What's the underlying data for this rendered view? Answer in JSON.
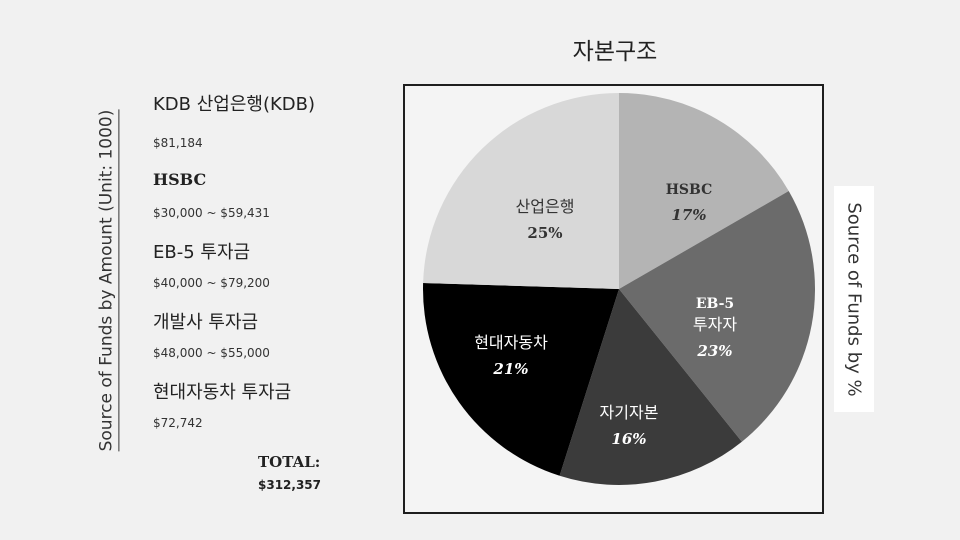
{
  "chart_title": "자본구조",
  "left_axis_title": "Source of Funds by Amount (Unit: 1000)",
  "right_axis_title": "Source of Funds by %",
  "sources": [
    {
      "name": "KDB 산업은행(KDB)",
      "amount": "$81,184",
      "serif": false
    },
    {
      "name": "HSBC",
      "amount": "$30,000 ~ $59,431",
      "serif": true
    },
    {
      "name": "EB-5 투자금",
      "amount": "$40,000 ~ $79,200",
      "serif": false
    },
    {
      "name": "개발사 투자금",
      "amount": "$48,000 ~ $55,000",
      "serif": false
    },
    {
      "name": "현대자동차 투자금",
      "amount": "$72,742",
      "serif": false
    }
  ],
  "total": {
    "label": "TOTAL:",
    "value": "$312,357"
  },
  "chart_data": {
    "type": "pie",
    "title": "자본구조",
    "slices": [
      {
        "label": "HSBC",
        "value": 17,
        "value_label": "17%",
        "color": "#b4b4b4",
        "text_color": "#333333"
      },
      {
        "label": "EB-5\n투자자",
        "value": 23,
        "value_label": "23%",
        "color": "#6b6b6b",
        "text_color": "#ffffff"
      },
      {
        "label": "자기자본",
        "value": 16,
        "value_label": "16%",
        "color": "#3b3b3b",
        "text_color": "#ffffff"
      },
      {
        "label": "현대자동차",
        "value": 21,
        "value_label": "21%",
        "color": "#000000",
        "text_color": "#ffffff"
      },
      {
        "label": "산업은행",
        "value": 25,
        "value_label": "25%",
        "color": "#d8d8d8",
        "text_color": "#333333"
      }
    ],
    "start_angle_deg": 0,
    "direction": "clockwise"
  }
}
